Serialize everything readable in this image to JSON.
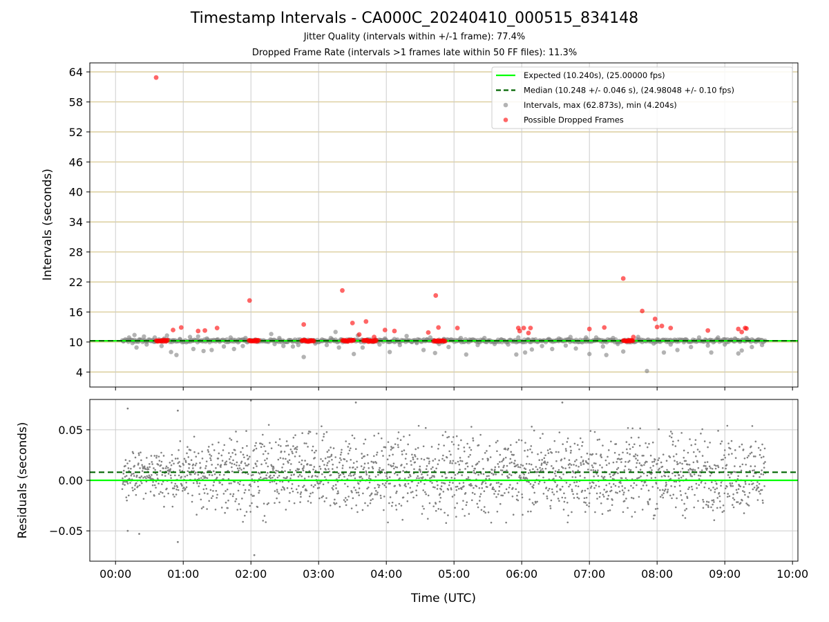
{
  "chart_data": [
    {
      "type": "scatter",
      "title": "Timestamp Intervals - CA000C_20240410_000515_834148",
      "subtitle_1": "Jitter Quality (intervals within +/-1 frame): 77.4%",
      "subtitle_2": "Dropped Frame Rate (intervals >1 frames late within 50 FF files): 11.3%",
      "ylabel": "Intervals (seconds)",
      "x_unit": "hours since 00:00 UTC",
      "xlim": [
        -0.38,
        10.08
      ],
      "ylim": [
        1.0,
        65.8
      ],
      "yticks": [
        4,
        10,
        16,
        22,
        28,
        34,
        40,
        46,
        52,
        58,
        64
      ],
      "expected": {
        "value": 10.24,
        "label": "Expected (10.240s), (25.00000 fps)",
        "color": "#00ff00"
      },
      "median": {
        "value": 10.248,
        "label": "Median (10.248 +/- 0.046 s), (24.98048 +/- 0.10 fps)",
        "color": "#006400"
      },
      "series": [
        {
          "name": "Intervals, max (62.873s), min (4.204s)",
          "color": "#808080",
          "x": [
            0.12,
            0.2,
            0.25,
            0.28,
            0.31,
            0.35,
            0.42,
            0.46,
            0.55,
            0.58,
            0.68,
            0.72,
            0.76,
            0.82,
            0.85,
            0.9,
            0.95,
            1.1,
            1.15,
            1.22,
            1.3,
            1.35,
            1.42,
            1.5,
            1.6,
            1.7,
            1.75,
            1.82,
            1.88,
            1.92,
            2.3,
            2.35,
            2.42,
            2.48,
            2.55,
            2.62,
            2.7,
            2.78,
            2.9,
            2.95,
            3.05,
            3.12,
            3.18,
            3.25,
            3.3,
            3.45,
            3.52,
            3.58,
            3.65,
            3.72,
            3.9,
            3.98,
            4.05,
            4.12,
            4.2,
            4.3,
            4.38,
            4.45,
            4.55,
            4.6,
            4.65,
            4.72,
            4.78,
            4.85,
            4.92,
            5.1,
            5.18,
            5.25,
            5.35,
            5.45,
            5.6,
            5.7,
            5.8,
            5.92,
            5.95,
            6.05,
            6.1,
            6.15,
            6.3,
            6.4,
            6.45,
            6.55,
            6.65,
            6.72,
            6.8,
            6.95,
            7.0,
            7.1,
            7.2,
            7.25,
            7.35,
            7.42,
            7.5,
            7.72,
            7.85,
            7.95,
            8.0,
            8.1,
            8.2,
            8.3,
            8.4,
            8.5,
            8.62,
            8.75,
            8.8,
            8.9,
            9.0,
            9.15,
            9.2,
            9.25,
            9.32,
            9.4,
            9.48,
            9.55
          ],
          "y": [
            10.2,
            10.9,
            9.8,
            11.4,
            8.9,
            10.5,
            11.1,
            9.5,
            10.3,
            10.9,
            9.2,
            10.7,
            11.3,
            8.0,
            10.3,
            7.4,
            10.6,
            11.0,
            8.6,
            11.1,
            8.2,
            10.7,
            8.4,
            10.4,
            9.1,
            10.9,
            8.6,
            10.5,
            9.2,
            10.8,
            11.6,
            9.6,
            10.8,
            9.2,
            10.2,
            9.1,
            9.4,
            7.0,
            10.3,
            9.7,
            10.5,
            9.4,
            10.8,
            12.0,
            8.9,
            10.4,
            7.6,
            11.3,
            8.9,
            10.5,
            9.5,
            10.7,
            8.0,
            10.6,
            9.4,
            11.2,
            10.0,
            9.8,
            8.4,
            10.5,
            10.9,
            7.8,
            9.6,
            10.6,
            9.0,
            10.8,
            7.5,
            10.4,
            9.4,
            10.8,
            9.6,
            10.5,
            9.5,
            7.5,
            10.9,
            7.9,
            10.5,
            8.5,
            9.2,
            10.6,
            8.6,
            10.7,
            9.3,
            11.0,
            8.7,
            10.9,
            7.6,
            10.9,
            9.1,
            7.4,
            10.8,
            9.6,
            8.1,
            11.0,
            4.2,
            9.7,
            10.5,
            7.9,
            9.5,
            8.4,
            10.2,
            9.0,
            10.9,
            9.3,
            7.9,
            10.9,
            9.5,
            10.7,
            7.7,
            8.3,
            10.8,
            9.0,
            10.3,
            9.4
          ]
        },
        {
          "name": "Possible Dropped Frames",
          "color": "#ff0000",
          "x": [
            0.6,
            0.85,
            0.97,
            1.22,
            1.32,
            1.5,
            1.98,
            2.78,
            3.35,
            3.5,
            3.6,
            3.7,
            3.82,
            3.98,
            4.12,
            4.62,
            4.73,
            4.77,
            5.05,
            5.95,
            5.97,
            6.03,
            6.1,
            6.13,
            7.0,
            7.22,
            7.5,
            7.65,
            7.78,
            7.97,
            8.0,
            8.07,
            8.2,
            8.75,
            9.2,
            9.25,
            9.3,
            9.32
          ],
          "y": [
            62.873,
            12.4,
            12.9,
            12.2,
            12.3,
            12.8,
            18.3,
            13.5,
            20.3,
            13.8,
            11.5,
            14.1,
            11.0,
            12.4,
            12.2,
            11.9,
            19.3,
            12.9,
            12.8,
            12.8,
            12.2,
            12.8,
            11.8,
            12.8,
            12.6,
            12.9,
            22.7,
            11.0,
            16.2,
            14.6,
            13.0,
            13.2,
            12.8,
            12.3,
            12.6,
            12.0,
            12.8,
            12.7
          ],
          "clusters": [
            [
              0.6,
              0.78
            ],
            [
              1.97,
              2.12
            ],
            [
              2.75,
              2.93
            ],
            [
              3.35,
              3.52
            ],
            [
              3.66,
              3.86
            ],
            [
              4.7,
              4.87
            ],
            [
              7.5,
              7.65
            ]
          ],
          "cluster_value": 10.24
        }
      ],
      "legend": "top-right",
      "grid": true
    },
    {
      "type": "scatter",
      "xlabel": "Time (UTC)",
      "ylabel": "Residuals (seconds)",
      "xlim": [
        -0.38,
        10.08
      ],
      "ylim": [
        -0.08,
        0.08
      ],
      "xticks": [
        "00:00",
        "01:00",
        "02:00",
        "03:00",
        "04:00",
        "05:00",
        "06:00",
        "07:00",
        "08:00",
        "09:00",
        "10:00"
      ],
      "yticks": [
        "0.05",
        "0.00",
        "−0.05"
      ],
      "ytick_values": [
        0.05,
        0.0,
        -0.05
      ],
      "expected_residual": 0.0,
      "median_residual": 0.008,
      "series": [
        {
          "name": "Residuals",
          "color": "#808080",
          "x_range": [
            0.1,
            9.6
          ],
          "samples": [
            {
              "x": 0.18,
              "y": 0.071
            },
            {
              "x": 0.18,
              "y": -0.05
            },
            {
              "x": 0.35,
              "y": -0.053
            },
            {
              "x": 0.92,
              "y": 0.069
            },
            {
              "x": 0.92,
              "y": -0.061
            },
            {
              "x": 2.0,
              "y": 0.079
            },
            {
              "x": 2.05,
              "y": -0.074
            },
            {
              "x": 3.55,
              "y": 0.077
            },
            {
              "x": 6.6,
              "y": 0.077
            },
            {
              "x": 7.3,
              "y": -0.081
            }
          ],
          "note": "dense band approx +/-0.015 before 02:00 widening to approx +/-0.05 after"
        }
      ],
      "grid": true
    }
  ]
}
